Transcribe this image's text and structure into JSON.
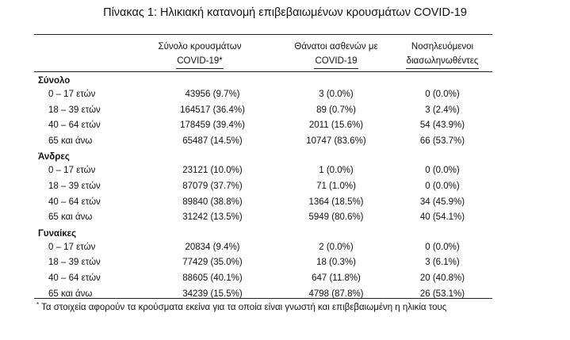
{
  "title": "Πίνακας 1: Ηλικιακή κατανομή επιβεβαιωμένων κρουσμάτων COVID-19",
  "headers": [
    {
      "line1": "Σύνολο κρουσμάτων",
      "line2": "COVID-19*"
    },
    {
      "line1": "Θάνατοι ασθενών με",
      "line2": "COVID-19"
    },
    {
      "line1": "Νοσηλευόμενοι",
      "line2": "διασωληνωθέντες"
    }
  ],
  "groups": [
    {
      "name": "Σύνολο",
      "rows": [
        {
          "age": "0 – 17 ετών",
          "cases": "43956 (9.7%)",
          "deaths": "3 (0.0%)",
          "intubated": "0 (0.0%)"
        },
        {
          "age": "18 – 39 ετών",
          "cases": "164517 (36.4%)",
          "deaths": "89 (0.7%)",
          "intubated": "3 (2.4%)"
        },
        {
          "age": "40 – 64 ετών",
          "cases": "178459 (39.4%)",
          "deaths": "2011 (15.6%)",
          "intubated": "54 (43.9%)"
        },
        {
          "age": "65 και άνω",
          "cases": "65487 (14.5%)",
          "deaths": "10747 (83.6%)",
          "intubated": "66 (53.7%)"
        }
      ]
    },
    {
      "name": "Άνδρες",
      "rows": [
        {
          "age": "0 – 17 ετών",
          "cases": "23121 (10.0%)",
          "deaths": "1 (0.0%)",
          "intubated": "0 (0.0%)"
        },
        {
          "age": "18 – 39 ετών",
          "cases": "87079 (37.7%)",
          "deaths": "71 (1.0%)",
          "intubated": "0 (0.0%)"
        },
        {
          "age": "40 – 64 ετών",
          "cases": "89840 (38.8%)",
          "deaths": "1364 (18.5%)",
          "intubated": "34 (45.9%)"
        },
        {
          "age": "65 και άνω",
          "cases": "31242 (13.5%)",
          "deaths": "5949 (80.6%)",
          "intubated": "40 (54.1%)"
        }
      ]
    },
    {
      "name": "Γυναίκες",
      "rows": [
        {
          "age": "0 – 17 ετών",
          "cases": "20834 (9.4%)",
          "deaths": "2 (0.0%)",
          "intubated": "0 (0.0%)"
        },
        {
          "age": "18 – 39 ετών",
          "cases": "77429 (35.0%)",
          "deaths": "18 (0.3%)",
          "intubated": "3 (6.1%)"
        },
        {
          "age": "40 – 64 ετών",
          "cases": "88605 (40.1%)",
          "deaths": "647 (11.8%)",
          "intubated": "20 (40.8%)"
        },
        {
          "age": "65 και άνω",
          "cases": "34239 (15.5%)",
          "deaths": "4798 (87.8%)",
          "intubated": "26 (53.1%)"
        }
      ]
    }
  ],
  "footnote": {
    "marker": "*",
    "text": "Τα στοιχεία αφορούν τα κρούσματα εκείνα για τα οποία είναι γνωστή και επιβεβαιωμένη η ηλικία τους"
  }
}
